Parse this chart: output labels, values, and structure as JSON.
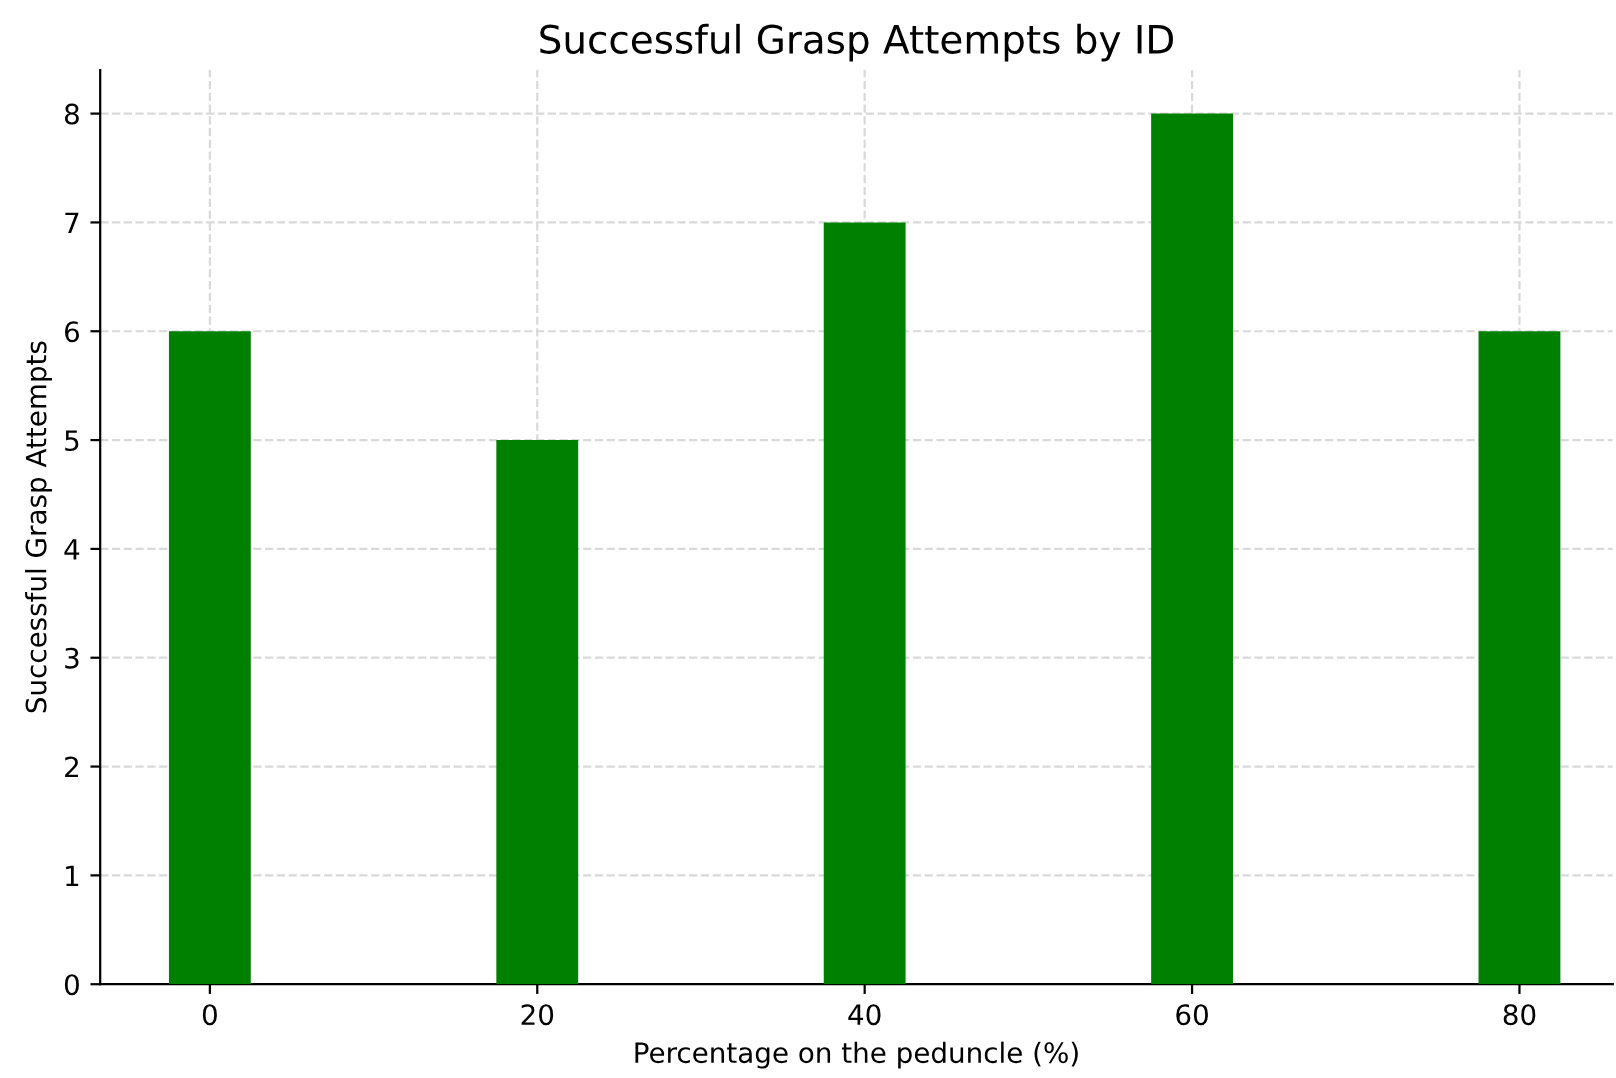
{
  "chart_data": {
    "type": "bar",
    "title": "Successful Grasp Attempts by ID",
    "xlabel": "Percentage on the peduncle (%)",
    "ylabel": "Successful Grasp Attempts",
    "x": [
      0,
      20,
      40,
      60,
      80
    ],
    "series": [
      {
        "color": "#008000",
        "values": [
          6,
          5,
          7,
          8,
          6
        ]
      }
    ],
    "xlim": [
      -6.7,
      85.7
    ],
    "xticks": [
      0,
      20,
      40,
      60,
      80
    ],
    "ylim": [
      0,
      8.4
    ],
    "yticks": [
      0,
      1,
      2,
      3,
      4,
      5,
      6,
      7,
      8
    ],
    "grid": true,
    "legend": false
  }
}
